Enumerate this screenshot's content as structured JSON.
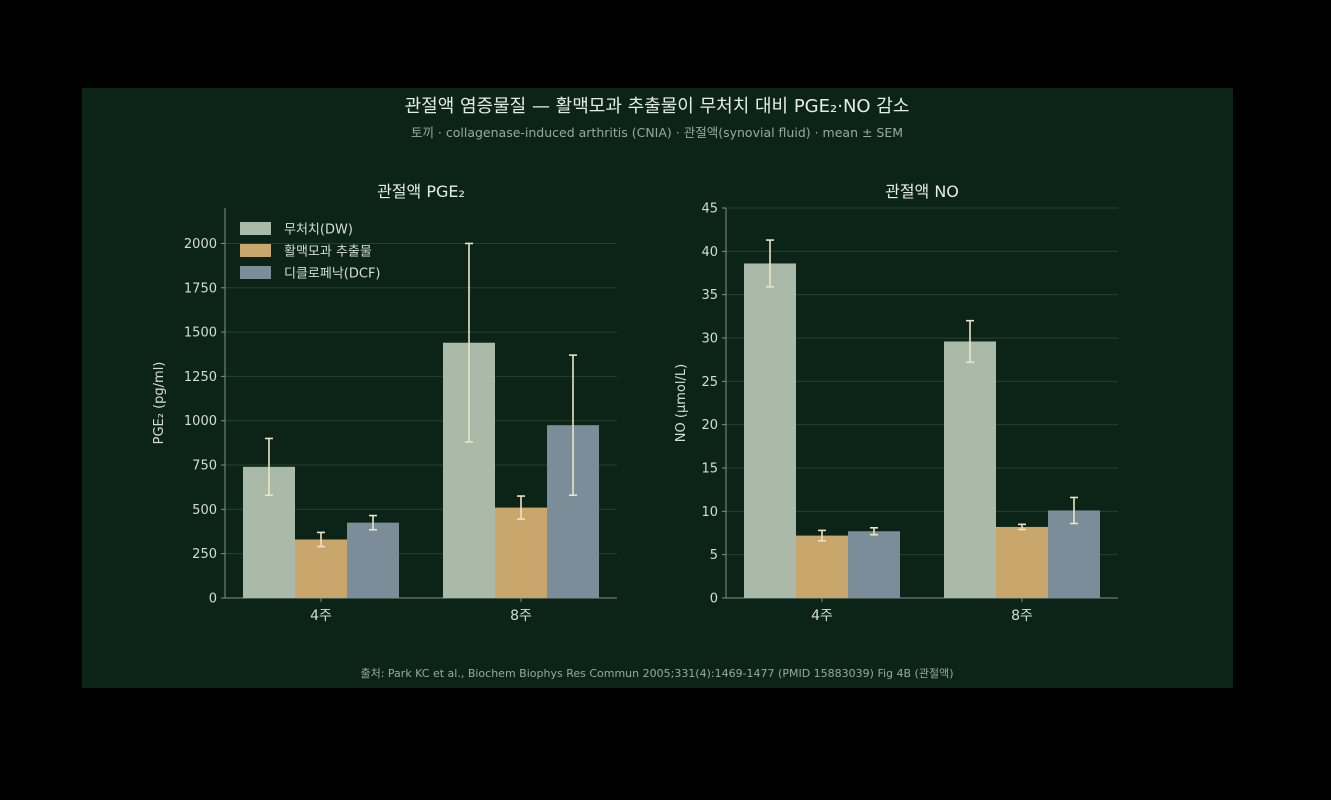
{
  "figure": {
    "title": "관절액 염증물질 — 활맥모과 추출물이 무처치 대비 PGE₂·NO 감소",
    "subtitle": "토끼 · collagenase-induced arthritis (CNIA) · 관절액(synovial fluid) · mean ± SEM",
    "source": "출처: Park KC et al., Biochem Biophys Res Commun 2005;331(4):1469-1477 (PMID 15883039) Fig 4B (관절액)"
  },
  "colors": {
    "background": "#0c2418",
    "series": [
      "#abb9a8",
      "#c9a66b",
      "#7b8d98"
    ],
    "error_bar": "#ece2c6",
    "grid": "#23402f",
    "axis": "#7f9186",
    "text": "#d4dcd6",
    "subtext": "#98a89e"
  },
  "chart_data": [
    {
      "type": "bar",
      "title": "관절액 PGE₂",
      "xlabel": "",
      "ylabel": "PGE₂ (pg/ml)",
      "categories": [
        "4주",
        "8주"
      ],
      "ylim": [
        0,
        2200
      ],
      "yticks": [
        0,
        250,
        500,
        750,
        1000,
        1250,
        1500,
        1750,
        2000
      ],
      "grid": true,
      "legend": "top-left",
      "series": [
        {
          "name": "무처치(DW)",
          "values": [
            740,
            1440
          ],
          "errors": [
            160,
            560
          ]
        },
        {
          "name": "활맥모과 추출물",
          "values": [
            330,
            510
          ],
          "errors": [
            40,
            65
          ]
        },
        {
          "name": "디클로페낙(DCF)",
          "values": [
            425,
            975
          ],
          "errors": [
            40,
            395
          ]
        }
      ]
    },
    {
      "type": "bar",
      "title": "관절액 NO",
      "xlabel": "",
      "ylabel": "NO (μmol/L)",
      "categories": [
        "4주",
        "8주"
      ],
      "ylim": [
        0,
        45
      ],
      "yticks": [
        0,
        5,
        10,
        15,
        20,
        25,
        30,
        35,
        40,
        45
      ],
      "grid": true,
      "legend": "none",
      "series": [
        {
          "name": "무처치(DW)",
          "values": [
            38.6,
            29.6
          ],
          "errors": [
            2.7,
            2.4
          ]
        },
        {
          "name": "활맥모과 추출물",
          "values": [
            7.2,
            8.2
          ],
          "errors": [
            0.6,
            0.3
          ]
        },
        {
          "name": "디클로페낙(DCF)",
          "values": [
            7.7,
            10.1
          ],
          "errors": [
            0.4,
            1.5
          ]
        }
      ]
    }
  ]
}
